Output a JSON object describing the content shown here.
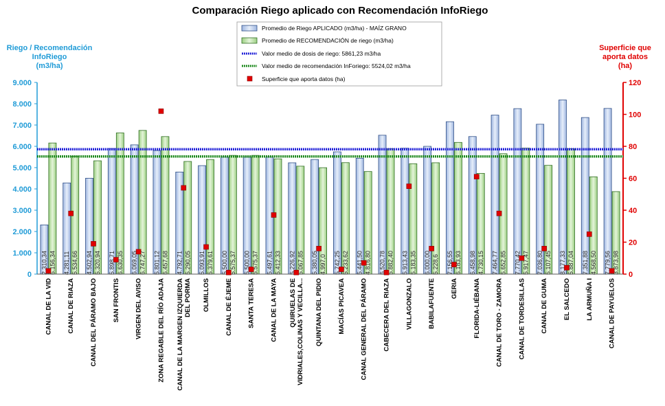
{
  "chart_data": {
    "type": "bar",
    "title": "Comparación Riego aplicado con Recomendación InfoRiego",
    "ylabel_left": [
      "Riego / Recomendación",
      "InfoRiego",
      "(m3/ha)"
    ],
    "ylabel_right": [
      "Superficie que",
      "aporta datos",
      "(ha)"
    ],
    "ylim_left": [
      0,
      9000
    ],
    "yticks_left": [
      "0",
      "1.000",
      "2.000",
      "3.000",
      "4.000",
      "5.000",
      "6.000",
      "7.000",
      "8.000",
      "9.000"
    ],
    "ylim_right": [
      0,
      120
    ],
    "yticks_right": [
      "0",
      "20",
      "40",
      "60",
      "80",
      "100",
      "120"
    ],
    "categories": [
      [
        "CANAL DE LA VID"
      ],
      [
        "CANAL DE RIAZA"
      ],
      [
        "CANAL DEL PÁRAMO BAJO"
      ],
      [
        "SAN FRONTIS"
      ],
      [
        "VIRGEN DEL AVISO"
      ],
      [
        "ZONA REGABLE DEL RÍO ADAJA"
      ],
      [
        "CANAL DE LA MARGEN IZQUIERDA",
        "DEL PORMA"
      ],
      [
        "OLMILLOS"
      ],
      [
        "CANAL DE ÉJEME"
      ],
      [
        "SANTA TERESA"
      ],
      [
        "CANAL DE LA MAYA"
      ],
      [
        "QUIRUELAS DE",
        "VIDRIALES,COLINAS Y VECILLA..."
      ],
      [
        "QUINTANA DEL PIDIO"
      ],
      [
        "MACÍAS PICAVEA"
      ],
      [
        "CANAL GENERAL DEL PÁRAMO"
      ],
      [
        "CABECERA DEL RIAZA"
      ],
      [
        "VILLAGONZALO"
      ],
      [
        "BABILAFUENTE"
      ],
      [
        "GERIA"
      ],
      [
        "FLORIDA-LIÉBANA"
      ],
      [
        "CANAL DE TORO - ZAMORA"
      ],
      [
        "CANAL DE TORDESILLAS"
      ],
      [
        "CANAL DE GUMA"
      ],
      [
        "EL SALCEDO"
      ],
      [
        "LA ARMUÑA I"
      ],
      [
        "CANAL DE PAYUELOS"
      ]
    ],
    "series": [
      {
        "name": "Promedio de Riego APLICADO (m3/ha) - MAÍZ GRANO",
        "values": [
          2310.34,
          4281.11,
          4502.94,
          5898.71,
          6069.05,
          5801.12,
          4792.71,
          5093.91,
          5500.0,
          5500.0,
          5497.61,
          5226.92,
          5380.05,
          5742.25,
          5441.5,
          6520.78,
          5913.43,
          6000.0,
          7156.55,
          6458.98,
          7464.77,
          7770.42,
          7036.8,
          8177.33,
          7351.88,
          7779.56
        ],
        "labels": [
          "2.310,34",
          "4.281,11",
          "4.502,94",
          "5.898,71",
          "6.069,05",
          "5.801,12",
          "4.792,71",
          "5.093,91",
          "5.500,00",
          "5.500,00",
          "5.497,61",
          "5.226,92",
          "5.380,05",
          "5.742,25",
          "5.441,50",
          "6.520,78",
          "5.913,43",
          "6.000,00",
          "7.156,55",
          "6.458,98",
          "7.464,77",
          "7.770,42",
          "7.036,80",
          "8.177,33",
          "7.351,88",
          "7.779,56"
        ]
      },
      {
        "name": "Promedio de RECOMENDACIÓN de riego (m3/ha)",
        "values": [
          6156.34,
          5534.66,
          5320.94,
          6630.35,
          6747.27,
          6457.68,
          5290.05,
          5379.61,
          5575.37,
          5575.37,
          5412.33,
          5067.85,
          4997.0,
          5233.62,
          4816.8,
          5882.4,
          5183.35,
          5228.6,
          6183.93,
          4730.15,
          5652.85,
          5917.47,
          5107.45,
          5887.04,
          4568.5,
          3873.98
        ],
        "labels": [
          "6.156,34",
          "5.534,66",
          "5.320,94",
          "6.630,35",
          "6.747,27",
          "6.457,68",
          "5.290,05",
          "5.379,61",
          "5.575,37",
          "5.575,37",
          "5.412,33",
          "5.067,85",
          "4.997,0",
          "5.233,62",
          "4.816,80",
          "5.882,40",
          "5.183,35",
          "5.228,6",
          "6.183,93",
          "4.730,15",
          "5.652,85",
          "5.917,47",
          "5.107,45",
          "5.887,04",
          "4.568,50",
          "3.873,98"
        ]
      },
      {
        "name": "Superficie que aporta datos (ha)",
        "axis": "right",
        "values": [
          2,
          38,
          19,
          9,
          14,
          102,
          54,
          17,
          1,
          3,
          37,
          1,
          16,
          3,
          7,
          1,
          55,
          16,
          6,
          61,
          38,
          10,
          16,
          4,
          25,
          2
        ]
      }
    ],
    "reference_lines": [
      {
        "name": "Valor medio de dosis de riego: 5861,23 m3/ha",
        "value": 5861.23,
        "color": "#2323D8"
      },
      {
        "name": "Valor medio de recomendación InForiego: 5524,02 m3/ha",
        "value": 5524.02,
        "color": "#1E8A1E"
      }
    ],
    "colors": {
      "bar_applied_fill": "#B9CDEB",
      "bar_applied_stroke": "#2E4E86",
      "bar_rec_fill": "#B9E0A5",
      "bar_rec_stroke": "#2F6D22",
      "marker": "#E00000",
      "left_axis": "#1F9BD7",
      "right_axis": "#E00000"
    },
    "legend_position": "top-center",
    "grid": false
  }
}
